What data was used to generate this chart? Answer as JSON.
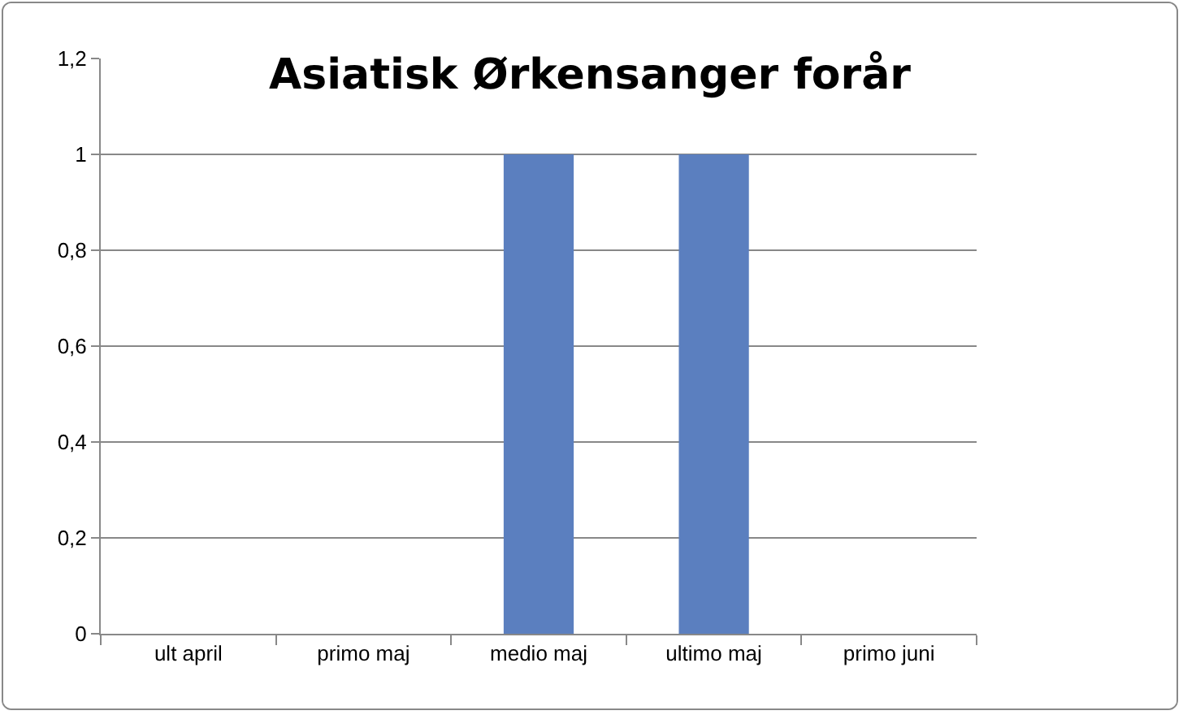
{
  "chart_data": {
    "type": "bar",
    "title": "Asiatisk Ørkensanger forår",
    "categories": [
      "ult april",
      "primo maj",
      "medio maj",
      "ultimo maj",
      "primo juni"
    ],
    "values": [
      0,
      0,
      1,
      1,
      0
    ],
    "color": "#5b7fbf",
    "ylim": [
      0,
      1.2
    ],
    "yticks": [
      0,
      {
        "value": 0.2,
        "label": "0,2"
      },
      {
        "value": 0.4,
        "label": "0,4"
      },
      {
        "value": 0.6,
        "label": "0,6"
      },
      {
        "value": 0.8,
        "label": "0,8"
      },
      1,
      {
        "value": 1.2,
        "label": "1,2"
      }
    ],
    "grid": "y"
  }
}
